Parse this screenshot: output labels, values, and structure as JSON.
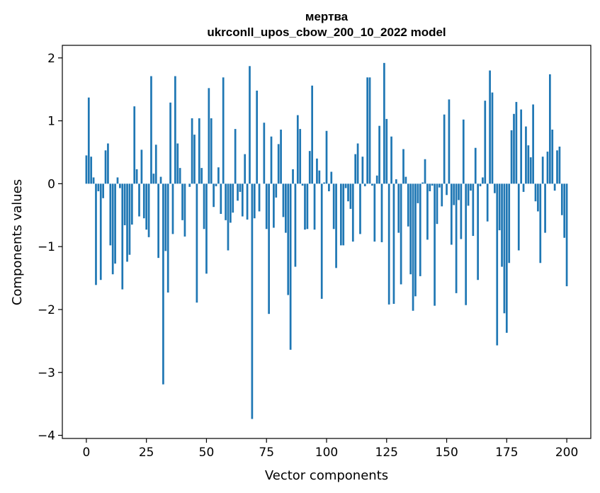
{
  "chart_data": {
    "type": "bar",
    "title_line1": "мертва",
    "title_line2": "ukrconll_upos_cbow_200_10_2022 model",
    "xlabel": "Vector components",
    "ylabel": "Components values",
    "xlim": [
      -10,
      210
    ],
    "ylim": [
      -4.05,
      2.2
    ],
    "xticks": [
      0,
      25,
      50,
      75,
      100,
      125,
      150,
      175,
      200
    ],
    "yticks": [
      -4,
      -3,
      -2,
      -1,
      0,
      1,
      2
    ],
    "bar_color": "#1f77b4",
    "grid": false,
    "values": [
      0.45,
      1.37,
      0.43,
      0.1,
      -1.61,
      -0.12,
      -1.53,
      -0.23,
      0.53,
      0.64,
      -0.98,
      -1.44,
      -1.27,
      0.1,
      -0.07,
      -1.68,
      -0.66,
      -1.24,
      -1.13,
      -0.65,
      1.23,
      0.23,
      -0.52,
      0.54,
      -0.55,
      -0.73,
      -0.85,
      1.71,
      0.16,
      0.62,
      -1.18,
      0.11,
      -3.19,
      -1.07,
      -1.73,
      1.29,
      -0.8,
      1.71,
      0.64,
      0.25,
      -0.58,
      -0.84,
      0.0,
      -0.05,
      1.04,
      0.78,
      -1.89,
      1.04,
      0.25,
      -0.72,
      -1.43,
      1.52,
      1.04,
      -0.37,
      -0.04,
      0.26,
      -0.48,
      1.69,
      -0.58,
      -1.06,
      -0.62,
      -0.46,
      0.87,
      -0.27,
      -0.13,
      -0.52,
      0.47,
      -0.57,
      1.87,
      -3.74,
      -0.55,
      1.48,
      -0.44,
      0.0,
      0.97,
      -0.72,
      -2.07,
      0.75,
      -0.7,
      -0.22,
      0.63,
      0.86,
      -0.53,
      -0.78,
      -1.77,
      -2.64,
      0.23,
      -1.32,
      1.09,
      0.87,
      -0.03,
      -0.73,
      -0.72,
      0.52,
      1.56,
      -0.73,
      0.4,
      0.21,
      -1.83,
      0.02,
      0.84,
      -0.12,
      0.19,
      -0.72,
      -1.34,
      0.0,
      -0.98,
      -0.98,
      -0.07,
      -0.28,
      -0.4,
      -0.92,
      0.47,
      0.64,
      -0.8,
      0.43,
      -0.04,
      1.69,
      1.69,
      -0.03,
      -0.92,
      0.13,
      0.92,
      -0.93,
      1.92,
      1.03,
      -1.92,
      0.75,
      -1.91,
      0.07,
      -0.78,
      -1.6,
      0.55,
      0.11,
      -0.68,
      -1.44,
      -2.02,
      -1.79,
      -0.31,
      -1.47,
      0.02,
      0.39,
      -0.89,
      -0.12,
      -0.03,
      -1.94,
      -0.64,
      -0.06,
      -0.36,
      1.1,
      -0.18,
      1.34,
      -0.97,
      -0.34,
      -1.74,
      -0.26,
      -0.88,
      1.02,
      -1.93,
      -0.35,
      -0.11,
      -0.83,
      0.57,
      -1.53,
      -0.04,
      0.1,
      1.32,
      -0.6,
      1.8,
      1.45,
      -0.15,
      -2.57,
      -0.74,
      -1.32,
      -2.06,
      -2.37,
      -1.26,
      0.85,
      1.11,
      1.3,
      -1.06,
      1.18,
      -0.13,
      0.91,
      0.61,
      0.42,
      1.26,
      -0.28,
      -0.44,
      -1.26,
      0.43,
      -0.78,
      0.51,
      1.74,
      0.86,
      -0.11,
      0.53,
      0.59,
      -0.5,
      -0.86,
      -1.63
    ]
  }
}
